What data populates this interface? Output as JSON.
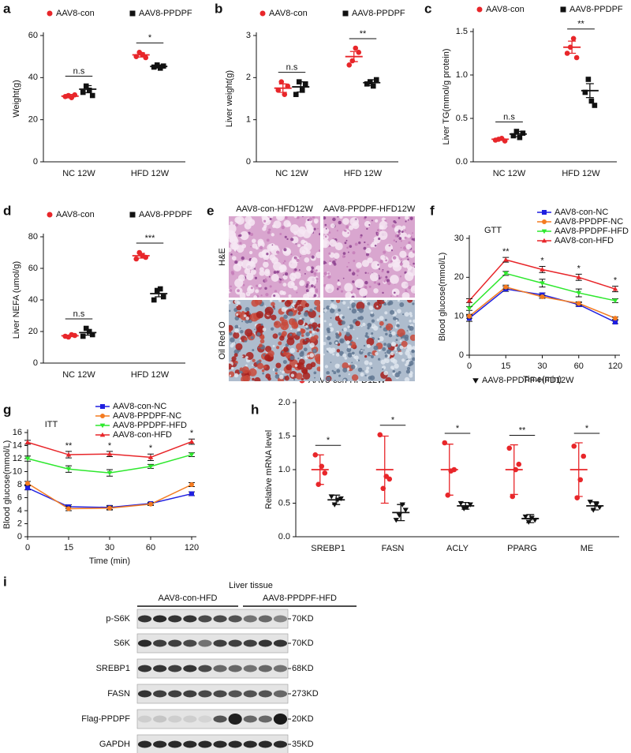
{
  "chart_data": [
    {
      "panel": "a",
      "type": "dot",
      "ylabel": "Weight(g)",
      "categories": [
        "NC 12W",
        "HFD 12W"
      ],
      "ylim": [
        0,
        60
      ],
      "yticks": [
        0,
        20,
        40,
        60
      ],
      "legend": "top",
      "significance": [
        "n.s",
        "*"
      ],
      "series": [
        {
          "name": "AAV8-con",
          "color": "#e8262a",
          "marker": "circle",
          "points": [
            [
              31,
              31.5,
              30.5,
              31.8
            ],
            [
              50,
              52,
              51,
              49.5
            ]
          ],
          "means": [
            31.2,
            50.8
          ],
          "errors": [
            0.8,
            1
          ]
        },
        {
          "name": "AAV8-PPDPF",
          "color": "#111111",
          "marker": "square",
          "points": [
            [
              33,
              36,
              34,
              31.5
            ],
            [
              45,
              46,
              44.5,
              45.5
            ]
          ],
          "means": [
            34.5,
            45.3
          ],
          "errors": [
            1.7,
            0.7
          ]
        }
      ]
    },
    {
      "panel": "b",
      "type": "dot",
      "ylabel": "Liver weight(g)",
      "categories": [
        "NC 12W",
        "HFD 12W"
      ],
      "ylim": [
        0,
        3
      ],
      "yticks": [
        0,
        1,
        2,
        3
      ],
      "legend": "top",
      "significance": [
        "n.s",
        "**"
      ],
      "series": [
        {
          "name": "AAV8-con",
          "color": "#e8262a",
          "marker": "circle",
          "points": [
            [
              1.7,
              1.9,
              1.6,
              1.8
            ],
            [
              2.3,
              2.4,
              2.7,
              2.6
            ]
          ],
          "means": [
            1.75,
            2.5
          ],
          "errors": [
            0.1,
            0.12
          ]
        },
        {
          "name": "AAV8-PPDPF",
          "color": "#111111",
          "marker": "square",
          "points": [
            [
              1.6,
              1.9,
              1.7,
              1.85
            ],
            [
              1.85,
              1.9,
              1.8,
              1.95
            ]
          ],
          "means": [
            1.78,
            1.88
          ],
          "errors": [
            0.12,
            0.07
          ]
        }
      ]
    },
    {
      "panel": "c",
      "type": "dot",
      "ylabel": "Liver TG(mmol/g protein)",
      "categories": [
        "NC 12W",
        "HFD 12W"
      ],
      "ylim": [
        0,
        1.5
      ],
      "yticks": [
        {
          "value": 0,
          "label": "0.0"
        },
        0.5,
        {
          "value": 1,
          "label": "1.0"
        },
        1.5
      ],
      "legend": "top",
      "significance": [
        "n.s",
        "**"
      ],
      "series": [
        {
          "name": "AAV8-con",
          "color": "#e8262a",
          "marker": "circle",
          "points": [
            [
              0.25,
              0.26,
              0.27,
              0.24
            ],
            [
              1.25,
              1.32,
              1.42,
              1.2
            ]
          ],
          "means": [
            0.26,
            1.32
          ],
          "errors": [
            0.01,
            0.07
          ]
        },
        {
          "name": "AAV8-PPDPF",
          "color": "#111111",
          "marker": "square",
          "points": [
            [
              0.3,
              0.35,
              0.28,
              0.33
            ],
            [
              0.8,
              0.95,
              0.7,
              0.65
            ]
          ],
          "means": [
            0.32,
            0.82
          ],
          "errors": [
            0.03,
            0.08
          ]
        }
      ]
    },
    {
      "panel": "d",
      "type": "dot",
      "ylabel": "Liver NEFA (umol/g)",
      "categories": [
        "NC 12W",
        "HFD 12W"
      ],
      "ylim": [
        0,
        80
      ],
      "yticks": [
        0,
        20,
        40,
        60,
        80
      ],
      "legend": "top",
      "significance": [
        "n.s",
        "***"
      ],
      "series": [
        {
          "name": "AAV8-con",
          "color": "#e8262a",
          "marker": "circle",
          "points": [
            [
              17,
              16.5,
              18,
              17.5
            ],
            [
              66,
              70,
              68,
              67
            ]
          ],
          "means": [
            17.3,
            68
          ],
          "errors": [
            0.4,
            1.5
          ]
        },
        {
          "name": "AAV8-PPDPF",
          "color": "#111111",
          "marker": "square",
          "points": [
            [
              17,
              22,
              20,
              18
            ],
            [
              40,
              46,
              47,
              42
            ]
          ],
          "means": [
            19.3,
            44
          ],
          "errors": [
            1.6,
            2
          ]
        }
      ]
    },
    {
      "panel": "f",
      "type": "line",
      "annotation": "GTT",
      "xlabel": "Time(min)",
      "ylabel": "Blood glucose(mmol/L)",
      "categories": [
        "0",
        "15",
        "30",
        "60",
        "120"
      ],
      "ylim": [
        0,
        30
      ],
      "yticks": [
        0,
        10,
        20,
        30
      ],
      "legend": "upper right",
      "significance": [
        null,
        "**",
        "*",
        "*",
        "*"
      ],
      "series": [
        {
          "name": "AAV8-con-NC",
          "color": "#1f1fe0",
          "marker": "square",
          "values": [
            9.5,
            17,
            15.5,
            13,
            8.5
          ],
          "errors": [
            0.8,
            0.6,
            0.5,
            0.5,
            0.4
          ]
        },
        {
          "name": "AAV8-PPDPF-NC",
          "color": "#f47b20",
          "marker": "circle",
          "values": [
            10,
            17.5,
            15,
            13.3,
            9.5
          ],
          "errors": [
            0.5,
            0.5,
            0.4,
            0.4,
            0.3
          ]
        },
        {
          "name": "AAV8-PPDPF-HFD",
          "color": "#2ee82e",
          "marker": "triangle-down",
          "values": [
            12,
            21,
            18.5,
            16,
            14
          ],
          "errors": [
            0.5,
            0.5,
            1,
            1,
            0.5
          ]
        },
        {
          "name": "AAV8-con-HFD",
          "color": "#e8262a",
          "marker": "triangle-up",
          "values": [
            14,
            24.5,
            22,
            20,
            17
          ],
          "errors": [
            0.5,
            0.6,
            0.8,
            0.8,
            0.7
          ]
        }
      ]
    },
    {
      "panel": "g",
      "type": "line",
      "annotation": "ITT",
      "xlabel": "Time (min)",
      "ylabel": "Blood glucose(mmol/L)",
      "categories": [
        "0",
        "15",
        "30",
        "60",
        "120"
      ],
      "ylim": [
        0,
        16
      ],
      "yticks": [
        0,
        2,
        4,
        6,
        8,
        10,
        12,
        14,
        16
      ],
      "legend": "upper right",
      "significance": [
        null,
        "**",
        "*",
        "*",
        "*"
      ],
      "series": [
        {
          "name": "AAV8-con-NC",
          "color": "#1f1fe0",
          "marker": "square",
          "values": [
            7.5,
            4.6,
            4.5,
            5.1,
            6.6
          ],
          "errors": [
            0.3,
            0.3,
            0.3,
            0.2,
            0.3
          ]
        },
        {
          "name": "AAV8-PPDPF-NC",
          "color": "#f47b20",
          "marker": "circle",
          "values": [
            8.2,
            4.3,
            4.4,
            5,
            8
          ],
          "errors": [
            0.3,
            0.3,
            0.3,
            0.2,
            0.3
          ]
        },
        {
          "name": "AAV8-PPDPF-HFD",
          "color": "#2ee82e",
          "marker": "triangle-down",
          "values": [
            12,
            10.4,
            9.8,
            10.8,
            12.6
          ],
          "errors": [
            0.4,
            0.5,
            0.5,
            0.3,
            0.3
          ]
        },
        {
          "name": "AAV8-con-HFD",
          "color": "#e8262a",
          "marker": "triangle-up",
          "values": [
            14.5,
            12.6,
            12.7,
            12.2,
            14.6
          ],
          "errors": [
            0.3,
            0.5,
            0.4,
            0.5,
            0.4
          ]
        }
      ]
    },
    {
      "panel": "h",
      "type": "dot",
      "ylabel": "Relative mRNA level",
      "categories": [
        "SREBP1",
        "FASN",
        "ACLY",
        "PPARG",
        "ME"
      ],
      "ylim": [
        0,
        2
      ],
      "yticks": [
        {
          "value": 0,
          "label": "0.0"
        },
        0.5,
        {
          "value": 1,
          "label": "1.0"
        },
        1.5,
        {
          "value": 2,
          "label": "2.0"
        }
      ],
      "legend": "top",
      "significance": [
        "*",
        "*",
        "*",
        "**",
        "*"
      ],
      "series": [
        {
          "name": "AAV8-con-HFD12W",
          "color": "#e8262a",
          "marker": "circle",
          "points": [
            [
              1.22,
              0.78,
              1.05,
              0.95
            ],
            [
              1.52,
              0.72,
              0.9,
              0.86
            ],
            [
              1.4,
              0.62,
              0.98,
              1
            ],
            [
              1.32,
              0.6,
              1,
              1.08
            ],
            [
              1.35,
              0.58,
              0.85,
              1.2
            ]
          ],
          "means": [
            1,
            1,
            1,
            1,
            1
          ],
          "errors": [
            0.22,
            0.5,
            0.38,
            0.37,
            0.4
          ]
        },
        {
          "name": "AAV8-PPDPF-HFD12W",
          "color": "#111111",
          "marker": "triangle-down",
          "points": [
            [
              0.6,
              0.48,
              0.55,
              0.57
            ],
            [
              0.25,
              0.32,
              0.48,
              0.4
            ],
            [
              0.5,
              0.42,
              0.44,
              0.48
            ],
            [
              0.3,
              0.22,
              0.28,
              0.25
            ],
            [
              0.52,
              0.4,
              0.48,
              0.44
            ]
          ],
          "means": [
            0.55,
            0.36,
            0.46,
            0.27,
            0.46
          ],
          "errors": [
            0.07,
            0.12,
            0.05,
            0.06,
            0.06
          ]
        }
      ]
    }
  ],
  "histology": {
    "panel": "e",
    "columns": [
      "AAV8-con-HFD12W",
      "AAV8-PPDPF-HFD12W"
    ],
    "rows": [
      "H&E",
      "Oil Red O"
    ]
  },
  "western_blot": {
    "panel": "i",
    "title": "Liver tissue",
    "groups": [
      "AAV8-con-HFD",
      "AAV8-PPDPF-HFD"
    ],
    "rows": [
      {
        "protein": "p-S6K",
        "size": "70KD"
      },
      {
        "protein": "S6K",
        "size": "70KD"
      },
      {
        "protein": "SREBP1",
        "size": "68KD"
      },
      {
        "protein": "FASN",
        "size": "273KD"
      },
      {
        "protein": "Flag-PPDPF",
        "size": "20KD"
      },
      {
        "protein": "GAPDH",
        "size": "35KD"
      }
    ]
  }
}
